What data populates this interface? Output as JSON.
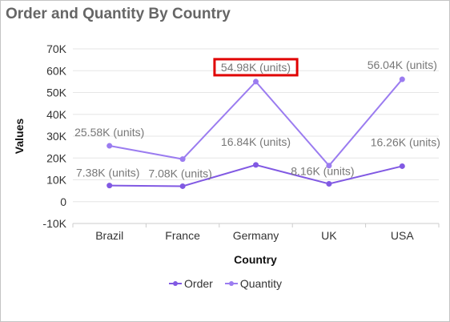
{
  "header": {
    "title": "Order and Quantity By Country"
  },
  "colors": {
    "order": "#8159e3",
    "quantity": "#9b7cf0",
    "highlight": "#e00000"
  },
  "chart_data": {
    "type": "line",
    "title": "Order and Quantity By Country",
    "xlabel": "Country",
    "ylabel": "Values",
    "categories": [
      "Brazil",
      "France",
      "Germany",
      "UK",
      "USA"
    ],
    "ylim": [
      -10000,
      70000
    ],
    "yticks": [
      70000,
      60000,
      50000,
      40000,
      30000,
      20000,
      10000,
      0,
      -10000
    ],
    "yticklabels": [
      "70K",
      "60K",
      "50K",
      "40K",
      "30K",
      "20K",
      "10K",
      "0",
      "-10K"
    ],
    "grid": true,
    "legend_position": "bottom",
    "series": [
      {
        "name": "Order",
        "values": [
          7380,
          7080,
          16840,
          8160,
          16260
        ],
        "labels": [
          "7.38K (units)",
          "7.08K (units)",
          "16.84K (units)",
          "8.16K (units)",
          "16.26K (units)"
        ]
      },
      {
        "name": "Quantity",
        "values": [
          25580,
          19500,
          54980,
          16500,
          56040
        ],
        "labels": [
          "25.58K (units)",
          null,
          "54.98K (units)",
          null,
          "56.04K (units)"
        ]
      }
    ],
    "highlighted_label": "54.98K (units)"
  }
}
